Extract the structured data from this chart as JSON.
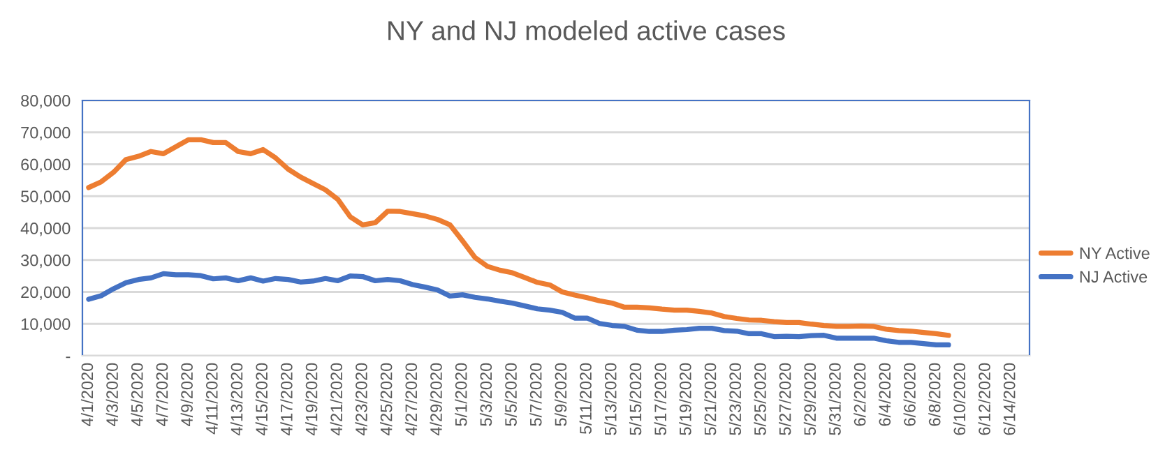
{
  "chart_data": {
    "type": "line",
    "title": "NY and NJ modeled active cases",
    "categories": [
      "4/1/2020",
      null,
      "4/3/2020",
      null,
      "4/5/2020",
      null,
      "4/7/2020",
      null,
      "4/9/2020",
      null,
      "4/11/2020",
      null,
      "4/13/2020",
      null,
      "4/15/2020",
      null,
      "4/17/2020",
      null,
      "4/19/2020",
      null,
      "4/21/2020",
      null,
      "4/23/2020",
      null,
      "4/25/2020",
      null,
      "4/27/2020",
      null,
      "4/29/2020",
      null,
      "5/1/2020",
      null,
      "5/3/2020",
      null,
      "5/5/2020",
      null,
      "5/7/2020",
      null,
      "5/9/2020",
      null,
      "5/11/2020",
      null,
      "5/13/2020",
      null,
      "5/15/2020",
      null,
      "5/17/2020",
      null,
      "5/19/2020",
      null,
      "5/21/2020",
      null,
      "5/23/2020",
      null,
      "5/25/2020",
      null,
      "5/27/2020",
      null,
      "5/29/2020",
      null,
      "5/31/2020",
      null,
      "6/2/2020",
      null,
      "6/4/2020",
      null,
      "6/6/2020",
      null,
      "6/8/2020",
      null,
      "6/10/2020",
      null,
      "6/12/2020",
      null,
      "6/14/2020",
      null
    ],
    "series": [
      {
        "name": "NY Active",
        "color": "#ed7d31",
        "values": [
          52700,
          54500,
          57500,
          61500,
          62500,
          64000,
          63300,
          65500,
          67700,
          67700,
          66800,
          66800,
          64000,
          63300,
          64600,
          62000,
          58500,
          56000,
          54000,
          52000,
          49000,
          43500,
          41000,
          41700,
          45300,
          45200,
          44500,
          43800,
          42700,
          41000,
          36000,
          30800,
          28000,
          26800,
          26000,
          24500,
          23000,
          22200,
          20000,
          19000,
          18200,
          17200,
          16500,
          15200,
          15200,
          15000,
          14600,
          14300,
          14300,
          13900,
          13400,
          12300,
          11700,
          11200,
          11100,
          10700,
          10400,
          10400,
          9900,
          9500,
          9200,
          9200,
          9300,
          9200,
          8300,
          7900,
          7700,
          7300,
          6900,
          6400,
          null,
          null,
          null,
          null,
          null,
          null
        ]
      },
      {
        "name": "NJ Active",
        "color": "#4472c4",
        "values": [
          17700,
          18800,
          21000,
          22900,
          23900,
          24400,
          25700,
          25400,
          25400,
          25100,
          24100,
          24400,
          23500,
          24400,
          23400,
          24200,
          23900,
          23100,
          23400,
          24200,
          23500,
          25000,
          24800,
          23500,
          23900,
          23500,
          22300,
          21500,
          20600,
          18700,
          19100,
          18300,
          17800,
          17100,
          16500,
          15600,
          14700,
          14300,
          13600,
          11800,
          11800,
          10100,
          9500,
          9200,
          8000,
          7600,
          7600,
          8000,
          8200,
          8600,
          8600,
          7900,
          7700,
          6900,
          6900,
          6000,
          6100,
          6000,
          6300,
          6400,
          5500,
          5500,
          5500,
          5500,
          4700,
          4200,
          4200,
          3800,
          3400,
          3400,
          null,
          null,
          null,
          null,
          null,
          null
        ]
      }
    ],
    "ylim": [
      0,
      80000
    ],
    "yticks": [
      {
        "value": 0,
        "label": "-"
      },
      {
        "value": 10000,
        "label": "10,000"
      },
      {
        "value": 20000,
        "label": "20,000"
      },
      {
        "value": 30000,
        "label": "30,000"
      },
      {
        "value": 40000,
        "label": "40,000"
      },
      {
        "value": 50000,
        "label": "50,000"
      },
      {
        "value": 60000,
        "label": "60,000"
      },
      {
        "value": 70000,
        "label": "70,000"
      },
      {
        "value": 80000,
        "label": "80,000"
      }
    ],
    "grid": "y",
    "legend": "right",
    "marker": "none",
    "line_style": "solid"
  }
}
